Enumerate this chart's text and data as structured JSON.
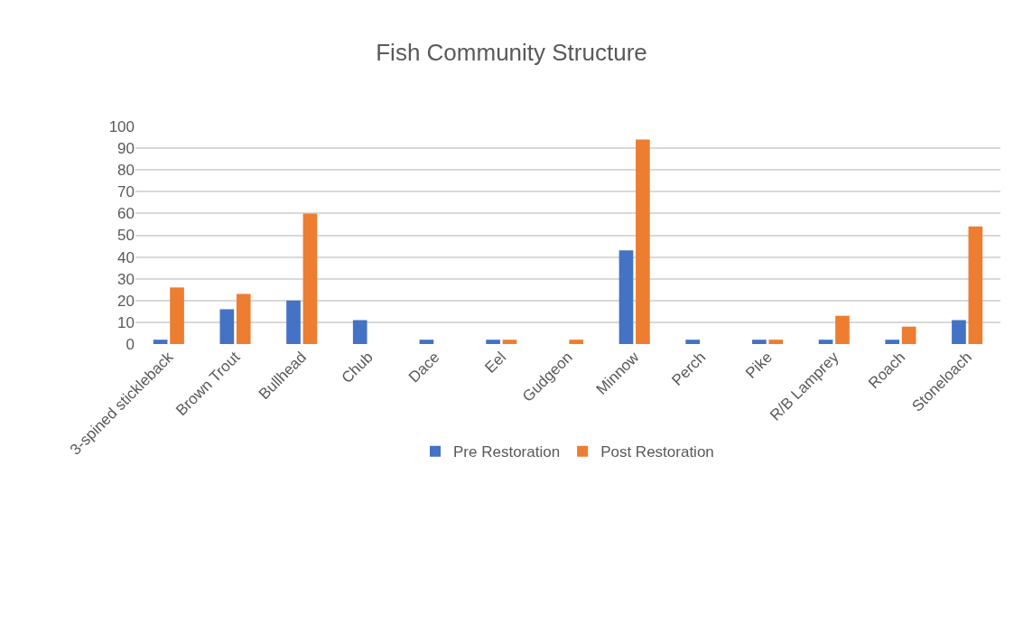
{
  "chart_data": {
    "type": "bar",
    "title": "Fish Community Structure",
    "categories": [
      "3-spined stickleback",
      "Brown Trout",
      "Bullhead",
      "Chub",
      "Dace",
      "Eel",
      "Gudgeon",
      "Minnow",
      "Perch",
      "Pike",
      "R/B Lamprey",
      "Roach",
      "Stoneloach"
    ],
    "series": [
      {
        "name": "Pre Restoration",
        "color": "#4472c4",
        "values": [
          2,
          16,
          20,
          11,
          2,
          2,
          0,
          43,
          2,
          2,
          2,
          2,
          11
        ]
      },
      {
        "name": "Post Restoration",
        "color": "#ed7d31",
        "values": [
          26,
          23,
          60,
          0,
          0,
          2,
          2,
          94,
          0,
          2,
          13,
          8,
          54
        ]
      }
    ],
    "ylim": [
      0,
      100
    ],
    "yticks": [
      0,
      10,
      20,
      30,
      40,
      50,
      60,
      70,
      80,
      90,
      100
    ],
    "grid": "y",
    "legend": "bottom"
  }
}
